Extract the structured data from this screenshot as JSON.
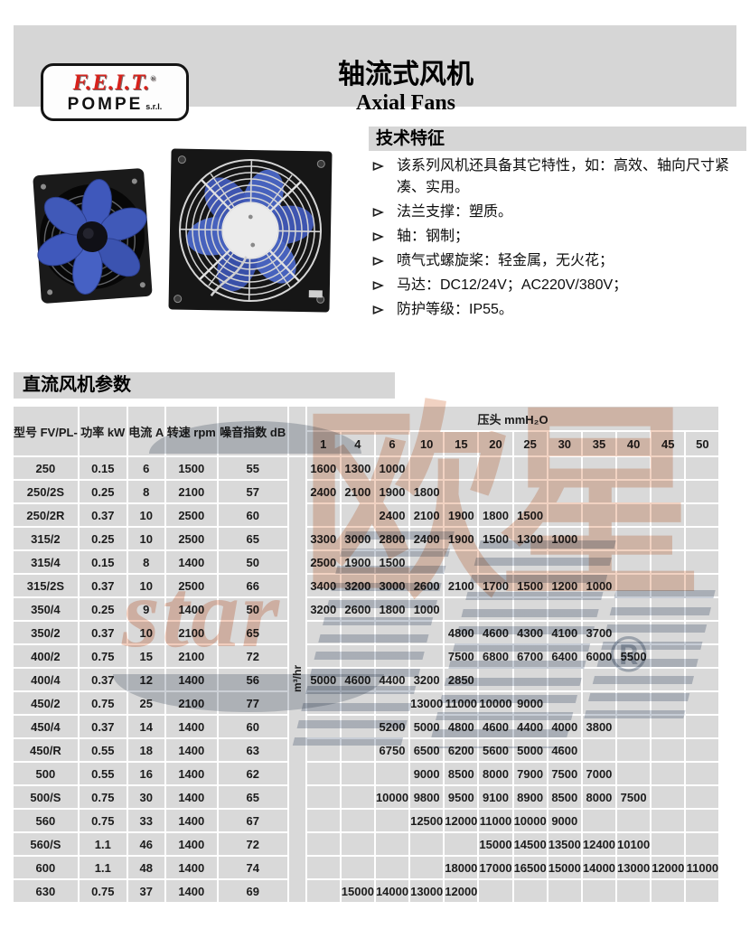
{
  "header": {
    "logo": {
      "brand": "F.E.I.T.",
      "reg": "®",
      "sub": "POMPE",
      "suffix": "s.r.l."
    },
    "title_zh": "轴流式风机",
    "title_en": "Axial Fans"
  },
  "tech": {
    "heading": "技术特征",
    "bullets": [
      "该系列风机还具备其它特性，如：高效、轴向尺寸紧凑、实用。",
      "法兰支撑：塑质。",
      "轴：钢制；",
      "喷气式螺旋桨：轻金属，无火花；",
      "马达：DC12/24V；AC220V/380V；",
      "防护等级：IP55。"
    ]
  },
  "params": {
    "heading": "直流风机参数"
  },
  "table": {
    "left_headers": [
      "型号 FV/PL-",
      "功率 kW",
      "电流 A",
      "转速 rpm",
      "噪音指数 dB"
    ],
    "pressure_header": "压头 mmH₂O",
    "pressures": [
      "1",
      "4",
      "6",
      "10",
      "15",
      "20",
      "25",
      "30",
      "35",
      "40",
      "45",
      "50"
    ],
    "flow_unit": "m³/hr",
    "rows": [
      {
        "model": "250",
        "power": "0.15",
        "current": "6",
        "speed": "1500",
        "noise": "55",
        "values": [
          "1600",
          "1300",
          "1000",
          "",
          "",
          "",
          "",
          "",
          "",
          "",
          "",
          ""
        ]
      },
      {
        "model": "250/2S",
        "power": "0.25",
        "current": "8",
        "speed": "2100",
        "noise": "57",
        "values": [
          "2400",
          "2100",
          "1900",
          "1800",
          "",
          "",
          "",
          "",
          "",
          "",
          "",
          ""
        ]
      },
      {
        "model": "250/2R",
        "power": "0.37",
        "current": "10",
        "speed": "2500",
        "noise": "60",
        "values": [
          "",
          "",
          "2400",
          "2100",
          "1900",
          "1800",
          "1500",
          "",
          "",
          "",
          "",
          ""
        ]
      },
      {
        "model": "315/2",
        "power": "0.25",
        "current": "10",
        "speed": "2500",
        "noise": "65",
        "values": [
          "3300",
          "3000",
          "2800",
          "2400",
          "1900",
          "1500",
          "1300",
          "1000",
          "",
          "",
          "",
          ""
        ]
      },
      {
        "model": "315/4",
        "power": "0.15",
        "current": "8",
        "speed": "1400",
        "noise": "50",
        "values": [
          "2500",
          "1900",
          "1500",
          "",
          "",
          "",
          "",
          "",
          "",
          "",
          "",
          ""
        ]
      },
      {
        "model": "315/2S",
        "power": "0.37",
        "current": "10",
        "speed": "2500",
        "noise": "66",
        "values": [
          "3400",
          "3200",
          "3000",
          "2600",
          "2100",
          "1700",
          "1500",
          "1200",
          "1000",
          "",
          "",
          ""
        ]
      },
      {
        "model": "350/4",
        "power": "0.25",
        "current": "9",
        "speed": "1400",
        "noise": "50",
        "values": [
          "3200",
          "2600",
          "1800",
          "1000",
          "",
          "",
          "",
          "",
          "",
          "",
          "",
          ""
        ]
      },
      {
        "model": "350/2",
        "power": "0.37",
        "current": "10",
        "speed": "2100",
        "noise": "65",
        "values": [
          "",
          "",
          "",
          "",
          "4800",
          "4600",
          "4300",
          "4100",
          "3700",
          "",
          "",
          ""
        ]
      },
      {
        "model": "400/2",
        "power": "0.75",
        "current": "15",
        "speed": "2100",
        "noise": "72",
        "values": [
          "",
          "",
          "",
          "",
          "7500",
          "6800",
          "6700",
          "6400",
          "6000",
          "5500",
          "",
          ""
        ]
      },
      {
        "model": "400/4",
        "power": "0.37",
        "current": "12",
        "speed": "1400",
        "noise": "56",
        "values": [
          "5000",
          "4600",
          "4400",
          "3200",
          "2850",
          "",
          "",
          "",
          "",
          "",
          "",
          ""
        ]
      },
      {
        "model": "450/2",
        "power": "0.75",
        "current": "25",
        "speed": "2100",
        "noise": "77",
        "values": [
          "",
          "",
          "",
          "13000",
          "11000",
          "10000",
          "9000",
          "",
          "",
          "",
          "",
          ""
        ]
      },
      {
        "model": "450/4",
        "power": "0.37",
        "current": "14",
        "speed": "1400",
        "noise": "60",
        "values": [
          "",
          "",
          "5200",
          "5000",
          "4800",
          "4600",
          "4400",
          "4000",
          "3800",
          "",
          "",
          ""
        ]
      },
      {
        "model": "450/R",
        "power": "0.55",
        "current": "18",
        "speed": "1400",
        "noise": "63",
        "values": [
          "",
          "",
          "6750",
          "6500",
          "6200",
          "5600",
          "5000",
          "4600",
          "",
          "",
          "",
          ""
        ]
      },
      {
        "model": "500",
        "power": "0.55",
        "current": "16",
        "speed": "1400",
        "noise": "62",
        "values": [
          "",
          "",
          "",
          "9000",
          "8500",
          "8000",
          "7900",
          "7500",
          "7000",
          "",
          "",
          ""
        ]
      },
      {
        "model": "500/S",
        "power": "0.75",
        "current": "30",
        "speed": "1400",
        "noise": "65",
        "values": [
          "",
          "",
          "10000",
          "9800",
          "9500",
          "9100",
          "8900",
          "8500",
          "8000",
          "7500",
          "",
          ""
        ]
      },
      {
        "model": "560",
        "power": "0.75",
        "current": "33",
        "speed": "1400",
        "noise": "67",
        "values": [
          "",
          "",
          "",
          "12500",
          "12000",
          "11000",
          "10000",
          "9000",
          "",
          "",
          "",
          ""
        ]
      },
      {
        "model": "560/S",
        "power": "1.1",
        "current": "46",
        "speed": "1400",
        "noise": "72",
        "values": [
          "",
          "",
          "",
          "",
          "",
          "15000",
          "14500",
          "13500",
          "12400",
          "10100",
          "",
          ""
        ]
      },
      {
        "model": "600",
        "power": "1.1",
        "current": "48",
        "speed": "1400",
        "noise": "74",
        "values": [
          "",
          "",
          "",
          "",
          "18000",
          "17000",
          "16500",
          "15000",
          "14000",
          "13000",
          "12000",
          "11000"
        ]
      },
      {
        "model": "630",
        "power": "0.75",
        "current": "37",
        "speed": "1400",
        "noise": "69",
        "values": [
          "",
          "15000",
          "14000",
          "13000",
          "12000",
          "",
          "",
          "",
          "",
          "",
          "",
          ""
        ]
      }
    ]
  },
  "watermark": {
    "text_zh": "欧星",
    "text_latin": "star",
    "reg": "®"
  },
  "colors": {
    "accent_red": "#d8211b",
    "blade_blue": "#4059b8",
    "band_gray": "#d6d6d6",
    "cell_gray": "#d9d9d9",
    "watermark_orange": "#db895e"
  }
}
